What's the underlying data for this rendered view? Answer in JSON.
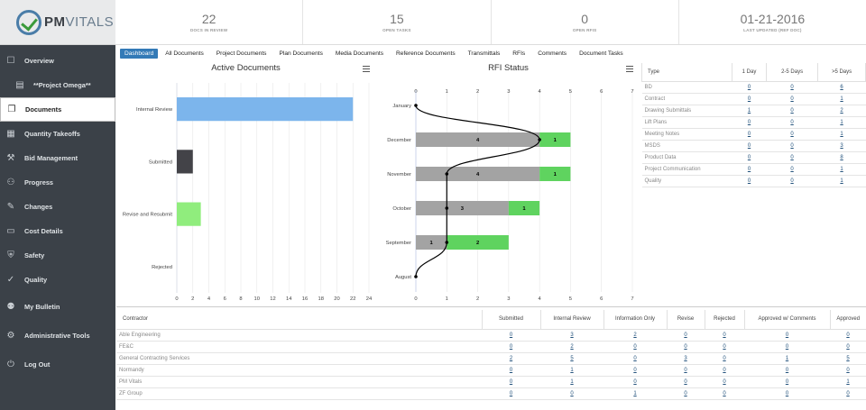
{
  "app": {
    "logo_prefix": "PM",
    "logo_suffix": "VITALS"
  },
  "stats": [
    {
      "value": "22",
      "label": "DOCS IN REVIEW"
    },
    {
      "value": "15",
      "label": "OPEN TASKS"
    },
    {
      "value": "0",
      "label": "OPEN RFIS"
    },
    {
      "value": "01-21-2016",
      "label": "LAST UPDATED (REF DOC)"
    }
  ],
  "sidebar": {
    "items": [
      {
        "label": "Overview",
        "icon": "overview-icon",
        "glyph": "☐"
      },
      {
        "label": "**Project Omega**",
        "icon": "project-icon",
        "glyph": "▤"
      },
      {
        "label": "Documents",
        "icon": "documents-icon",
        "glyph": "❐"
      },
      {
        "label": "Quantity Takeoffs",
        "icon": "grid-icon",
        "glyph": "▦"
      },
      {
        "label": "Bid Management",
        "icon": "hammer-icon",
        "glyph": "⚒"
      },
      {
        "label": "Progress",
        "icon": "progress-icon",
        "glyph": "⚇"
      },
      {
        "label": "Changes",
        "icon": "edit-icon",
        "glyph": "✎"
      },
      {
        "label": "Cost Details",
        "icon": "money-icon",
        "glyph": "▭"
      },
      {
        "label": "Safety",
        "icon": "safety-icon",
        "glyph": "⛨"
      },
      {
        "label": "Quality",
        "icon": "check-circle-icon",
        "glyph": "✓"
      },
      {
        "label": "My Bulletin",
        "icon": "users-icon",
        "glyph": "⚉"
      },
      {
        "label": "Administrative Tools",
        "icon": "gears-icon",
        "glyph": "⚙"
      },
      {
        "label": "Log Out",
        "icon": "logout-icon",
        "glyph": "⏻"
      }
    ]
  },
  "tabs": [
    "Dashboard",
    "All Documents",
    "Project Documents",
    "Plan Documents",
    "Media Documents",
    "Reference Documents",
    "Transmittals",
    "RFIs",
    "Comments",
    "Document Tasks"
  ],
  "charts": {
    "active_title": "Active Documents",
    "rfi_title": "RFI Status"
  },
  "chart_data": [
    {
      "type": "bar",
      "orientation": "horizontal",
      "title": "Active Documents",
      "categories": [
        "Internal Review",
        "Submitted",
        "Revise and Resubmit",
        "Rejected"
      ],
      "values": [
        22,
        2,
        3,
        0
      ],
      "colors": [
        "#7cb5ec",
        "#434348",
        "#90ed7d",
        "#f7a35c"
      ],
      "xlim": [
        0,
        24
      ],
      "xticks": [
        0,
        2,
        4,
        6,
        8,
        10,
        12,
        14,
        16,
        18,
        20,
        22,
        24
      ]
    },
    {
      "type": "bar",
      "orientation": "horizontal",
      "stacked": true,
      "title": "RFI Status",
      "categories": [
        "January",
        "December",
        "November",
        "October",
        "September",
        "August"
      ],
      "series": [
        {
          "color": "#a3a3a3",
          "values": [
            0,
            4,
            4,
            3,
            1,
            0
          ]
        },
        {
          "color": "#5fd35f",
          "values": [
            0,
            1,
            1,
            1,
            2,
            0
          ]
        }
      ],
      "line": {
        "values": [
          0,
          4,
          1,
          1,
          1,
          0
        ],
        "color": "#000000"
      },
      "xlim": [
        0,
        7
      ],
      "xticks": [
        0,
        1,
        2,
        3,
        4,
        5,
        6,
        7
      ]
    }
  ],
  "type_table": {
    "headers": [
      "Type",
      "1 Day",
      "2-5 Days",
      ">5 Days"
    ],
    "rows": [
      [
        "BD",
        "0",
        "0",
        "6"
      ],
      [
        "Contract",
        "0",
        "0",
        "1"
      ],
      [
        "Drawing Submittals",
        "1",
        "0",
        "2"
      ],
      [
        "Lift Plans",
        "0",
        "0",
        "1"
      ],
      [
        "Meeting Notes",
        "0",
        "0",
        "1"
      ],
      [
        "MSDS",
        "0",
        "0",
        "3"
      ],
      [
        "Product Data",
        "0",
        "0",
        "8"
      ],
      [
        "Project Communication",
        "0",
        "0",
        "1"
      ],
      [
        "Quality",
        "0",
        "0",
        "1"
      ]
    ]
  },
  "contractor_table": {
    "headers": [
      "Contractor",
      "Submitted",
      "Internal Review",
      "Information Only",
      "Revise",
      "Rejected",
      "Approved w/ Comments",
      "Approved"
    ],
    "rows": [
      [
        "Able Engineering",
        "0",
        "3",
        "2",
        "0",
        "0",
        "0",
        "0"
      ],
      [
        "FE&C",
        "0",
        "2",
        "0",
        "0",
        "0",
        "0",
        "0"
      ],
      [
        "General Contracting Services",
        "2",
        "5",
        "0",
        "3",
        "0",
        "1",
        "5"
      ],
      [
        "Normandy",
        "0",
        "1",
        "0",
        "0",
        "0",
        "0",
        "0"
      ],
      [
        "PM Vitals",
        "0",
        "1",
        "0",
        "0",
        "0",
        "0",
        "1"
      ],
      [
        "ZF Group",
        "0",
        "0",
        "1",
        "0",
        "0",
        "0",
        "0"
      ]
    ]
  }
}
